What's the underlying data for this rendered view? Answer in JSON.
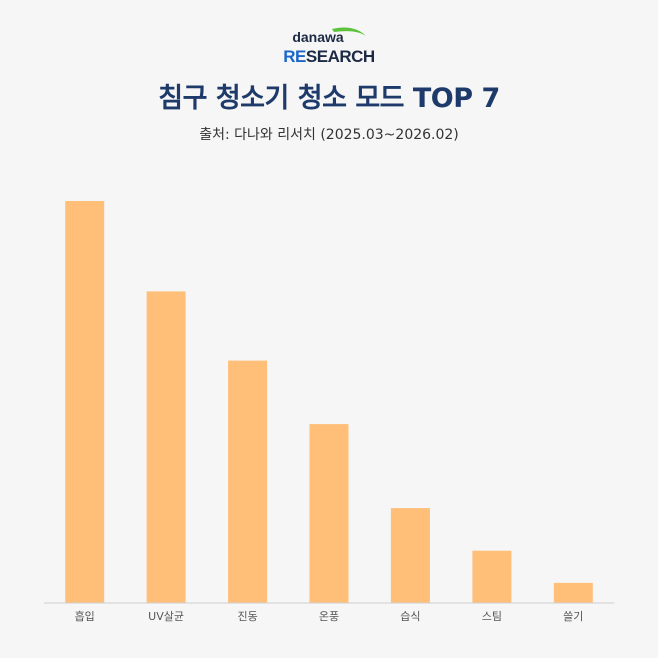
{
  "logo": {
    "top_text": "danawa",
    "bottom_text_accent": "RE",
    "bottom_text_rest": "SEARCH",
    "accent_color": "#1a66c9",
    "text_color": "#1d2a44",
    "swoosh_color": "#5cc23a"
  },
  "header": {
    "title": "침구 청소기 청소 모드 TOP 7",
    "subtitle": "출처: 다나와 리서치 (2025.03~2026.02)"
  },
  "chart_data": {
    "type": "bar",
    "categories": [
      "흡입",
      "UV살균",
      "진동",
      "온풍",
      "습식",
      "스팀",
      "쓸기"
    ],
    "values": [
      100,
      77.5,
      60.3,
      44.5,
      23.6,
      13,
      5
    ],
    "ylim": [
      0,
      100
    ],
    "bar_color": "#ffbf78",
    "axis_color": "#cfcfcf",
    "grid": false,
    "title": "",
    "xlabel": "",
    "ylabel": ""
  }
}
